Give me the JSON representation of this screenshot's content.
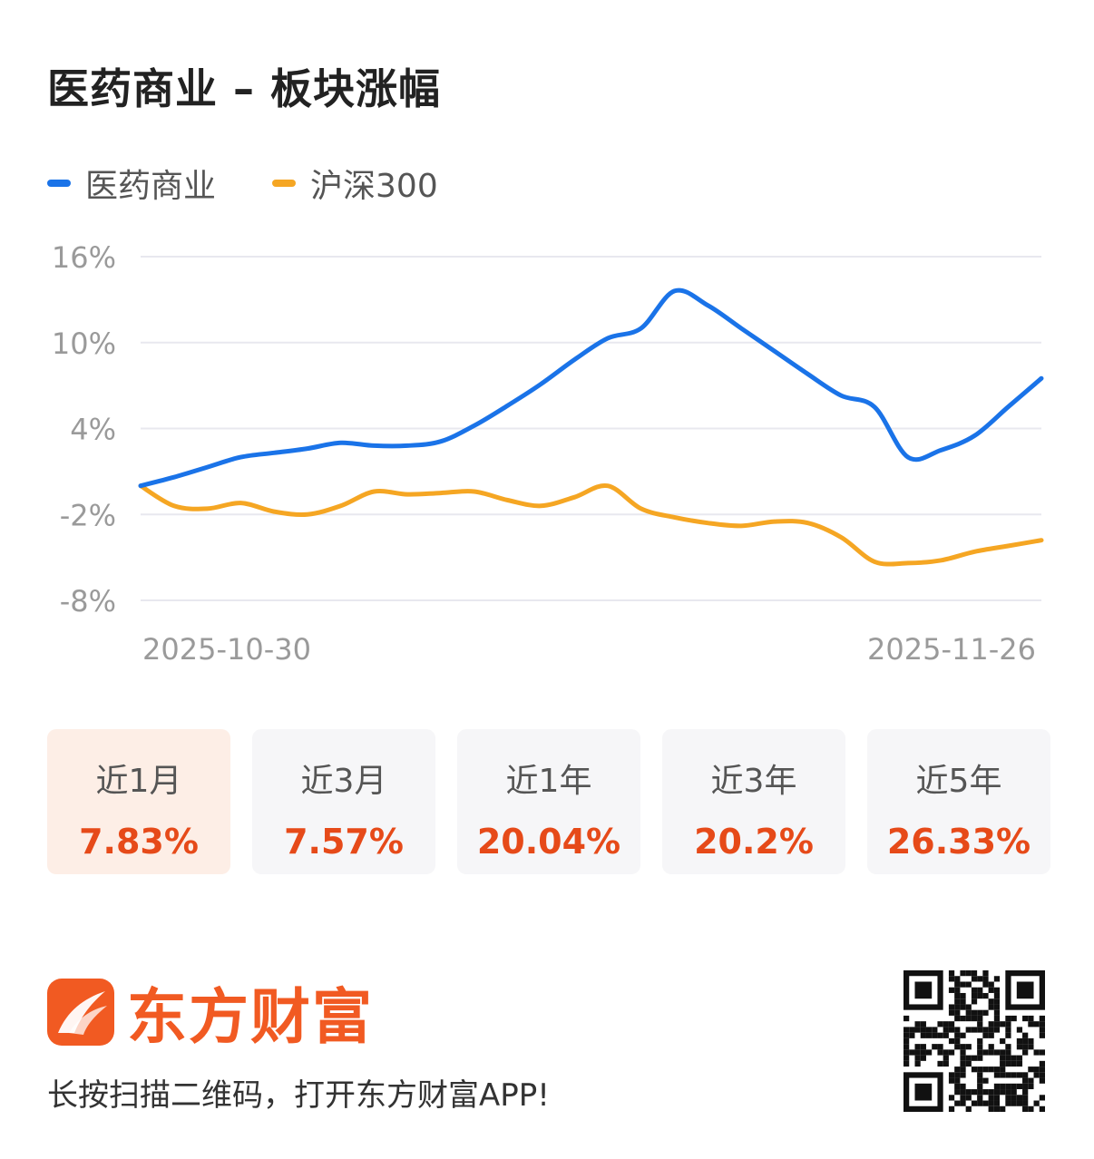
{
  "title": "医药商业 – 板块涨幅",
  "legend": [
    {
      "name": "医药商业",
      "color": "#1a73e8"
    },
    {
      "name": "沪深300",
      "color": "#f5a623"
    }
  ],
  "chart_data": {
    "type": "line",
    "title": "医药商业 – 板块涨幅",
    "yticks": [
      "16%",
      "10%",
      "4%",
      "-2%",
      "-8%"
    ],
    "ylim": [
      -8,
      16
    ],
    "xlabels": [
      "2025-10-30",
      "2025-11-26"
    ],
    "series": [
      {
        "name": "医药商业",
        "color": "#1a73e8",
        "values": [
          0,
          0.6,
          1.3,
          2.0,
          2.3,
          2.6,
          3.0,
          2.8,
          2.8,
          3.1,
          4.2,
          5.6,
          7.1,
          8.8,
          10.3,
          11.0,
          13.6,
          12.6,
          11.0,
          9.4,
          7.8,
          6.3,
          5.5,
          2.0,
          2.5,
          3.5,
          5.5,
          7.5
        ]
      },
      {
        "name": "沪深300",
        "color": "#f5a623",
        "values": [
          0,
          -1.4,
          -1.6,
          -1.2,
          -1.8,
          -2.0,
          -1.4,
          -0.4,
          -0.6,
          -0.5,
          -0.4,
          -1.0,
          -1.4,
          -0.8,
          0.0,
          -1.6,
          -2.2,
          -2.6,
          -2.8,
          -2.5,
          -2.6,
          -3.6,
          -5.3,
          -5.4,
          -5.2,
          -4.6,
          -4.2,
          -3.8
        ]
      }
    ]
  },
  "stats": [
    {
      "label": "近1月",
      "value": "7.83%"
    },
    {
      "label": "近3月",
      "value": "7.57%"
    },
    {
      "label": "近1年",
      "value": "20.04%"
    },
    {
      "label": "近3年",
      "value": "20.2%"
    },
    {
      "label": "近5年",
      "value": "26.33%"
    }
  ],
  "brand": {
    "name": "东方财富",
    "color": "#f15a22"
  },
  "stat_color": "#e64a19",
  "footer": "长按扫描二维码，打开东方财富APP!"
}
